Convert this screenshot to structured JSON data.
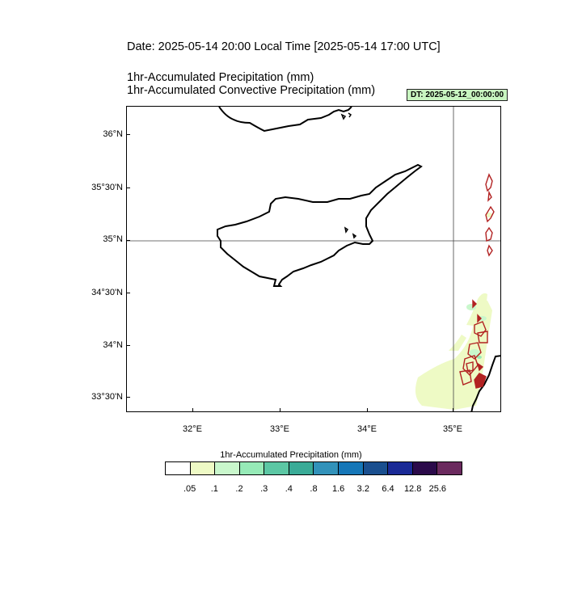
{
  "header": {
    "date_line": "Date: 2025-05-14  20:00 Local Time [2025-05-14  17:00 UTC]",
    "subtitle_1": "1hr-Accumulated Precipitation   (mm)",
    "subtitle_2": "1hr-Accumulated Convective Precipitation   (mm)",
    "dt_badge": "DT: 2025-05-12_00:00:00",
    "dt_badge_color": "#c8f5c0"
  },
  "map": {
    "lon_range": [
      31.25,
      35.55
    ],
    "lat_range": [
      33.3,
      36.25
    ],
    "lat_labels": [
      "36°N",
      "35°30'N",
      "35°N",
      "34°30'N",
      "34°N",
      "33°30'N"
    ],
    "lon_labels": [
      "32°E",
      "33°E",
      "34°E",
      "35°E"
    ],
    "reference_lines": [
      "35°N",
      "35°E"
    ],
    "coastline_color": "#000000",
    "convective_contour_color": "#b22222"
  },
  "colorbar": {
    "title": "1hr-Accumulated Precipitation  (mm)",
    "colors": [
      "#ffffff",
      "#eefac5",
      "#c9f7cc",
      "#96eab7",
      "#5cc7a4",
      "#3aab97",
      "#3292ba",
      "#1677b8",
      "#1a4f8f",
      "#1a2a96",
      "#2b0a4a",
      "#6b2a5e"
    ],
    "labels": [
      ".05",
      ".1",
      ".2",
      ".3",
      ".4",
      ".8",
      "1.6",
      "3.2",
      "6.4",
      "12.8",
      "25.6"
    ]
  }
}
